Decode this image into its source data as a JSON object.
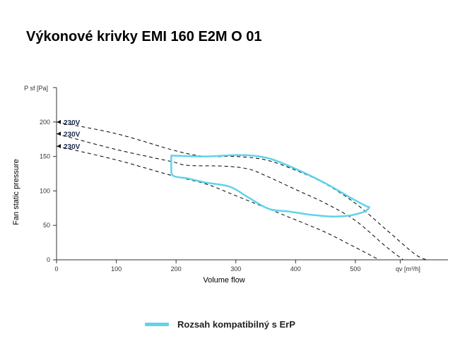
{
  "chart_data": {
    "type": "line",
    "title": "Výkonové krivky EMI 160 E2M O 01",
    "xlabel": "Volume flow",
    "ylabel": "Fan static pressure",
    "x_unit_label": "qv [m³/h]",
    "y_unit_label": "P sf [Pa]",
    "xlim": [
      0,
      655
    ],
    "ylim": [
      0,
      250
    ],
    "x_ticks": [
      0,
      100,
      200,
      300,
      400,
      500
    ],
    "y_ticks": [
      0,
      50,
      100,
      150,
      200
    ],
    "grid": false,
    "legend_position": "bottom",
    "series": [
      {
        "label": "230V",
        "style": "dashed",
        "color": "#000000",
        "points": [
          [
            0,
            200
          ],
          [
            100,
            183
          ],
          [
            200,
            158
          ],
          [
            250,
            150
          ],
          [
            300,
            150
          ],
          [
            350,
            145
          ],
          [
            400,
            130
          ],
          [
            450,
            110
          ],
          [
            500,
            82
          ],
          [
            550,
            45
          ],
          [
            600,
            8
          ],
          [
            620,
            0
          ]
        ]
      },
      {
        "label": "230V",
        "style": "dashed",
        "color": "#000000",
        "points": [
          [
            0,
            183
          ],
          [
            100,
            160
          ],
          [
            190,
            143
          ],
          [
            220,
            137
          ],
          [
            280,
            136
          ],
          [
            320,
            132
          ],
          [
            350,
            122
          ],
          [
            400,
            102
          ],
          [
            450,
            82
          ],
          [
            500,
            57
          ],
          [
            550,
            20
          ],
          [
            580,
            0
          ]
        ]
      },
      {
        "label": "230V",
        "style": "dashed",
        "color": "#000000",
        "points": [
          [
            0,
            165
          ],
          [
            100,
            145
          ],
          [
            190,
            123
          ],
          [
            250,
            110
          ],
          [
            300,
            93
          ],
          [
            360,
            72
          ],
          [
            400,
            58
          ],
          [
            450,
            40
          ],
          [
            500,
            18
          ],
          [
            540,
            0
          ]
        ]
      },
      {
        "name": "Rozsah kompatibilný s ErP",
        "style": "solid",
        "color": "#5fd3ea",
        "points": [
          [
            192,
            152
          ],
          [
            200,
            151
          ],
          [
            250,
            150
          ],
          [
            300,
            152
          ],
          [
            330,
            151
          ],
          [
            360,
            146
          ],
          [
            400,
            132
          ],
          [
            450,
            111
          ],
          [
            490,
            91
          ],
          [
            518,
            78
          ],
          [
            523,
            76
          ],
          [
            515,
            70
          ],
          [
            495,
            65
          ],
          [
            475,
            63
          ],
          [
            455,
            63
          ],
          [
            420,
            66
          ],
          [
            390,
            70
          ],
          [
            355,
            74
          ],
          [
            320,
            91
          ],
          [
            290,
            106
          ],
          [
            250,
            112
          ],
          [
            220,
            118
          ],
          [
            195,
            122
          ],
          [
            192,
            135
          ],
          [
            192,
            152
          ]
        ]
      }
    ]
  },
  "legend": {
    "label": "Rozsah kompatibilný s ErP",
    "color": "#5fd3ea"
  }
}
